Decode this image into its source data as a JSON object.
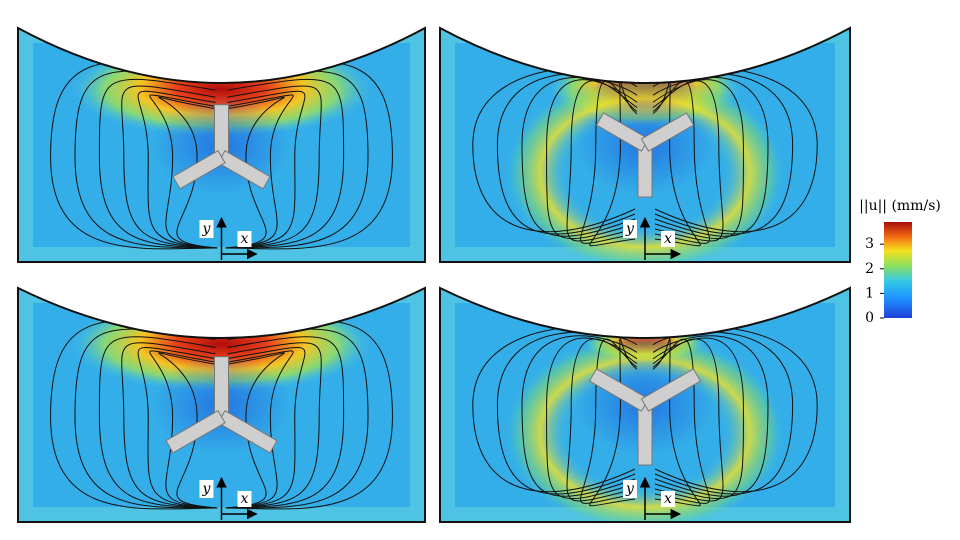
{
  "panels": [
    {
      "y_label": "y",
      "x_label": "x"
    },
    {
      "y_label": "y",
      "x_label": "x"
    },
    {
      "y_label": "y",
      "x_label": "x"
    },
    {
      "y_label": "y",
      "x_label": "x"
    }
  ],
  "colorbar": {
    "label": "||u|| (mm/s)",
    "lim": [
      0,
      3.9
    ],
    "ticks": [
      0,
      1,
      2,
      3
    ]
  }
}
